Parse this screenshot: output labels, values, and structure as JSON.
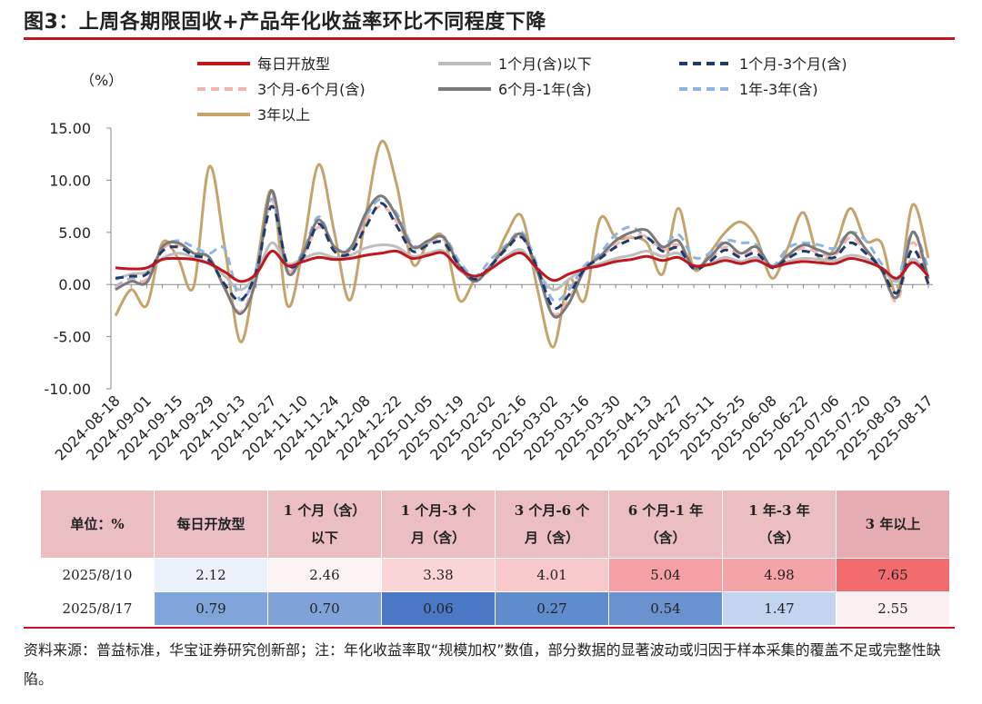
{
  "title": "图3：上周各期限固收+产品年化收益率环比不同程度下降",
  "chart_data": {
    "type": "line",
    "unit": "（%）",
    "ylim": [
      -10,
      15
    ],
    "yticks": [
      "-10.00",
      "-5.00",
      "0.00",
      "5.00",
      "10.00",
      "15.00"
    ],
    "legend_placement": "top",
    "x_tick_labels": [
      "2024-08-18",
      "2024-09-01",
      "2024-09-15",
      "2024-09-29",
      "2024-10-13",
      "2024-10-27",
      "2024-11-10",
      "2024-11-24",
      "2024-12-08",
      "2024-12-22",
      "2025-01-05",
      "2025-01-19",
      "2025-02-02",
      "2025-02-16",
      "2025-03-02",
      "2025-03-16",
      "2025-03-30",
      "2025-04-13",
      "2025-04-27",
      "2025-05-11",
      "2025-05-25",
      "2025-06-08",
      "2025-06-22",
      "2025-07-06",
      "2025-07-20",
      "2025-08-03",
      "2025-08-17"
    ],
    "x": [
      "2024-08-18",
      "2024-08-25",
      "2024-09-01",
      "2024-09-08",
      "2024-09-15",
      "2024-09-22",
      "2024-09-29",
      "2024-10-06",
      "2024-10-13",
      "2024-10-20",
      "2024-10-27",
      "2024-11-03",
      "2024-11-10",
      "2024-11-17",
      "2024-11-24",
      "2024-12-01",
      "2024-12-08",
      "2024-12-15",
      "2024-12-22",
      "2024-12-29",
      "2025-01-05",
      "2025-01-12",
      "2025-01-19",
      "2025-01-26",
      "2025-02-02",
      "2025-02-09",
      "2025-02-16",
      "2025-02-23",
      "2025-03-02",
      "2025-03-09",
      "2025-03-16",
      "2025-03-23",
      "2025-03-30",
      "2025-04-06",
      "2025-04-13",
      "2025-04-20",
      "2025-04-27",
      "2025-05-04",
      "2025-05-11",
      "2025-05-18",
      "2025-05-25",
      "2025-06-01",
      "2025-06-08",
      "2025-06-15",
      "2025-06-22",
      "2025-06-29",
      "2025-07-06",
      "2025-07-13",
      "2025-07-20",
      "2025-07-27",
      "2025-08-03",
      "2025-08-10",
      "2025-08-17"
    ],
    "series": [
      {
        "name": "每日开放型",
        "color": "#c0161e",
        "dash": "solid",
        "width": 3,
        "values": [
          1.6,
          1.5,
          1.6,
          2.4,
          2.5,
          2.4,
          2.0,
          1.2,
          0.3,
          1.0,
          3.2,
          1.8,
          2.2,
          2.6,
          2.4,
          2.5,
          2.8,
          3.0,
          3.2,
          2.5,
          2.8,
          3.0,
          1.5,
          0.8,
          1.5,
          2.5,
          3.0,
          1.5,
          0.4,
          1.0,
          1.5,
          1.8,
          2.2,
          2.4,
          2.7,
          2.3,
          2.6,
          1.8,
          1.9,
          2.3,
          2.0,
          2.3,
          1.7,
          2.0,
          2.2,
          2.1,
          2.0,
          2.5,
          2.2,
          1.6,
          0.6,
          2.12,
          0.79
        ]
      },
      {
        "name": "1个月(含)以下",
        "color": "#bdbdbd",
        "dash": "solid",
        "width": 3,
        "values": [
          0.5,
          1.0,
          1.2,
          2.5,
          3.0,
          2.6,
          2.0,
          0.8,
          -0.5,
          1.0,
          4.0,
          2.0,
          2.5,
          3.0,
          2.6,
          2.8,
          3.5,
          3.8,
          3.6,
          2.7,
          3.0,
          3.2,
          1.4,
          0.6,
          1.5,
          2.7,
          3.3,
          1.2,
          -0.5,
          0.5,
          1.5,
          2.0,
          2.5,
          2.8,
          3.2,
          2.7,
          3.0,
          1.8,
          2.0,
          2.6,
          2.2,
          2.6,
          1.8,
          2.2,
          2.5,
          2.4,
          2.3,
          2.8,
          2.5,
          1.5,
          0.3,
          2.46,
          0.7
        ]
      },
      {
        "name": "1个月-3个月(含)",
        "color": "#1f3b6e",
        "dash": "dash",
        "width": 3,
        "values": [
          0.6,
          0.8,
          1.0,
          3.2,
          3.6,
          2.8,
          2.3,
          0.0,
          -1.5,
          1.2,
          7.5,
          2.0,
          2.6,
          5.8,
          3.2,
          3.0,
          5.5,
          7.8,
          5.6,
          3.2,
          3.8,
          4.0,
          1.8,
          0.5,
          1.8,
          3.4,
          4.5,
          1.5,
          -2.2,
          -1.0,
          1.5,
          2.5,
          3.6,
          4.3,
          4.5,
          3.2,
          3.5,
          1.5,
          2.2,
          3.3,
          2.6,
          3.0,
          1.6,
          2.5,
          3.2,
          2.8,
          2.6,
          4.0,
          3.0,
          1.5,
          -0.8,
          3.38,
          0.06
        ]
      },
      {
        "name": "3个月-6个月(含)",
        "color": "#f4b5b0",
        "dash": "dash",
        "width": 3,
        "values": [
          -0.3,
          0.4,
          0.5,
          3.4,
          3.8,
          3.0,
          2.5,
          -0.3,
          -2.6,
          0.8,
          8.0,
          1.5,
          2.8,
          5.5,
          3.5,
          3.2,
          6.0,
          7.5,
          6.0,
          3.5,
          4.0,
          4.3,
          1.8,
          0.3,
          1.8,
          3.5,
          4.6,
          1.3,
          -2.8,
          -1.4,
          1.5,
          2.6,
          3.8,
          4.6,
          4.6,
          3.3,
          3.8,
          1.6,
          2.4,
          3.6,
          2.8,
          3.3,
          1.6,
          2.6,
          3.5,
          3.0,
          2.8,
          4.5,
          3.2,
          1.4,
          -1.6,
          4.01,
          0.27
        ]
      },
      {
        "name": "6个月-1年(含)",
        "color": "#7a7a7a",
        "dash": "solid",
        "width": 3,
        "values": [
          -0.5,
          0.3,
          0.2,
          3.6,
          4.0,
          3.0,
          2.6,
          -0.4,
          -2.8,
          0.5,
          9.0,
          1.2,
          3.0,
          6.2,
          3.6,
          3.4,
          6.8,
          8.5,
          6.5,
          3.6,
          4.2,
          4.5,
          1.8,
          0.3,
          1.8,
          3.6,
          4.8,
          1.2,
          -3.0,
          -1.8,
          1.4,
          2.7,
          4.2,
          5.0,
          5.2,
          3.6,
          4.2,
          1.6,
          2.6,
          4.0,
          3.0,
          3.6,
          1.7,
          2.8,
          3.8,
          3.3,
          3.0,
          5.0,
          3.4,
          1.4,
          -1.2,
          5.04,
          0.54
        ]
      },
      {
        "name": "1年-3年(含)",
        "color": "#8eb4e3",
        "dash": "dash",
        "width": 3,
        "values": [
          -0.2,
          0.6,
          0.4,
          3.5,
          4.2,
          3.6,
          3.0,
          3.4,
          -1.5,
          1.5,
          8.2,
          1.5,
          3.2,
          6.5,
          3.6,
          3.5,
          6.5,
          8.2,
          6.8,
          3.8,
          4.0,
          4.6,
          2.2,
          0.8,
          2.4,
          3.8,
          5.0,
          1.8,
          -1.5,
          -0.5,
          1.8,
          3.0,
          4.8,
          5.5,
          4.5,
          3.6,
          4.8,
          2.6,
          3.0,
          4.2,
          4.0,
          3.8,
          1.8,
          3.5,
          4.0,
          3.8,
          3.5,
          5.0,
          4.2,
          2.0,
          0.5,
          4.98,
          1.47
        ]
      },
      {
        "name": "3年以上",
        "color": "#c4a46a",
        "dash": "solid",
        "width": 3,
        "values": [
          -3.0,
          -0.5,
          -2.0,
          4.0,
          2.5,
          -0.2,
          11.3,
          3.5,
          -5.5,
          1.5,
          9.0,
          -2.0,
          3.5,
          11.5,
          5.0,
          -1.5,
          6.5,
          13.7,
          9.5,
          2.0,
          4.0,
          4.5,
          -1.5,
          0.5,
          1.5,
          4.8,
          6.5,
          -0.5,
          -6.0,
          0.5,
          -1.5,
          6.3,
          4.5,
          4.5,
          4.0,
          1.0,
          7.3,
          1.5,
          3.0,
          5.0,
          6.0,
          4.5,
          0.6,
          3.5,
          6.9,
          2.5,
          3.5,
          7.3,
          4.2,
          4.0,
          -0.8,
          7.65,
          2.55
        ]
      }
    ]
  },
  "table": {
    "header": [
      [
        "单位：%"
      ],
      [
        "每日开放型"
      ],
      [
        "1 个月（含）",
        "以下"
      ],
      [
        "1 个月-3 个",
        "月（含）"
      ],
      [
        "3 个月-6 个",
        "月（含）"
      ],
      [
        "6 个月-1 年",
        "（含）"
      ],
      [
        "1 年-3 年",
        "（含）"
      ],
      [
        "3 年以上"
      ]
    ],
    "rows": [
      {
        "date": "2025/8/10",
        "values": [
          "2.12",
          "2.46",
          "3.38",
          "4.01",
          "5.04",
          "4.98",
          "7.65"
        ],
        "colors": [
          "#eaf1fb",
          "#fbf3f4",
          "#fad5d6",
          "#f9c8ca",
          "#f4a0a4",
          "#f4a4a7",
          "#f26b6f"
        ]
      },
      {
        "date": "2025/8/17",
        "values": [
          "0.79",
          "0.70",
          "0.06",
          "0.27",
          "0.54",
          "1.47",
          "2.55"
        ],
        "colors": [
          "#7ea4d9",
          "#7fa3d8",
          "#4b78c4",
          "#5f8ccd",
          "#6a92cf",
          "#c2d4ee",
          "#fbeff1"
        ]
      }
    ]
  },
  "source": "资料来源：普益标准，华宝证券研究创新部；注：年化收益率取“规模加权”数值，部分数据的显著波动或归因于样本采集的覆盖不足或完整性缺陷。"
}
